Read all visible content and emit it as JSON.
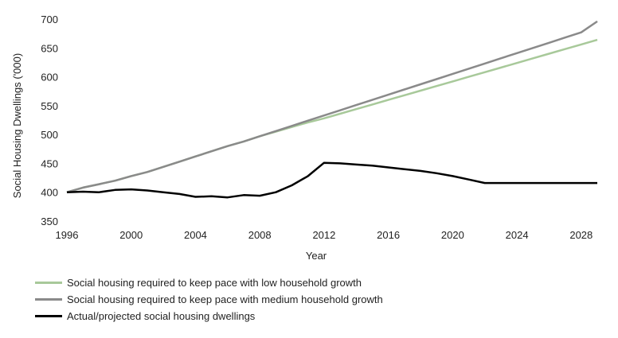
{
  "chart_data": {
    "type": "line",
    "xlabel": "Year",
    "ylabel": "Social Housing Dwellings ('000)",
    "xlim": [
      1996,
      2029
    ],
    "ylim": [
      350,
      700
    ],
    "xticks": [
      "1996",
      "2000",
      "2004",
      "2008",
      "2012",
      "2016",
      "2020",
      "2024",
      "2028"
    ],
    "yticks": [
      "350",
      "400",
      "450",
      "500",
      "550",
      "600",
      "650",
      "700"
    ],
    "grid": false,
    "legend_position": "bottom",
    "series": [
      {
        "name": "Social housing required to keep pace with low household growth",
        "color": "#a8c99a",
        "x": [
          1996,
          1997,
          1998,
          1999,
          2000,
          2001,
          2002,
          2003,
          2004,
          2005,
          2006,
          2007,
          2008,
          2009,
          2010,
          2011,
          2012,
          2013,
          2014,
          2015,
          2016,
          2017,
          2018,
          2019,
          2020,
          2021,
          2022,
          2023,
          2024,
          2025,
          2026,
          2027,
          2028,
          2029
        ],
        "values": [
          400,
          408,
          414,
          420,
          428,
          435,
          444,
          453,
          462,
          471,
          480,
          488,
          497,
          505,
          513,
          521,
          528,
          536,
          544,
          552,
          560,
          568,
          576,
          584,
          592,
          600,
          608,
          616,
          624,
          632,
          640,
          648,
          656,
          664
        ]
      },
      {
        "name": "Social housing required to keep pace with medium household growth",
        "color": "#8a8a8a",
        "x": [
          1996,
          1997,
          1998,
          1999,
          2000,
          2001,
          2002,
          2003,
          2004,
          2005,
          2006,
          2007,
          2008,
          2009,
          2010,
          2011,
          2012,
          2013,
          2014,
          2015,
          2016,
          2017,
          2018,
          2019,
          2020,
          2021,
          2022,
          2023,
          2024,
          2025,
          2026,
          2027,
          2028,
          2029
        ],
        "values": [
          400,
          408,
          414,
          420,
          428,
          435,
          444,
          453,
          462,
          471,
          480,
          488,
          497,
          506,
          515,
          524,
          533,
          542,
          551,
          560,
          569,
          578,
          587,
          596,
          605,
          614,
          623,
          632,
          641,
          650,
          659,
          668,
          677,
          696
        ]
      },
      {
        "name": "Actual/projected social housing dwellings",
        "color": "#000000",
        "x": [
          1996,
          1997,
          1998,
          1999,
          2000,
          2001,
          2002,
          2003,
          2004,
          2005,
          2006,
          2007,
          2008,
          2009,
          2010,
          2011,
          2012,
          2013,
          2014,
          2015,
          2016,
          2017,
          2018,
          2019,
          2020,
          2021,
          2022,
          2023,
          2024,
          2025,
          2026,
          2027,
          2028,
          2029
        ],
        "values": [
          400,
          401,
          400,
          404,
          405,
          403,
          400,
          397,
          392,
          393,
          391,
          395,
          394,
          400,
          412,
          428,
          451,
          450,
          448,
          446,
          443,
          440,
          437,
          433,
          428,
          422,
          416,
          416,
          416,
          416,
          416,
          416,
          416,
          416
        ]
      }
    ]
  }
}
